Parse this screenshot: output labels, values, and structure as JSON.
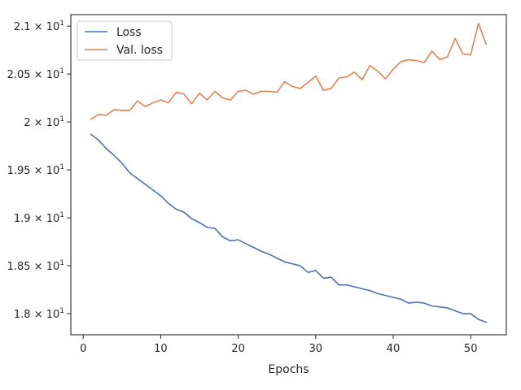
{
  "chart_data": {
    "type": "line",
    "title": "",
    "xlabel": "Epochs",
    "ylabel": "",
    "xlim": [
      -1.6,
      54.6
    ],
    "ylim": [
      17.78,
      21.12
    ],
    "grid": false,
    "legend_position": "top-left",
    "x_ticks": [
      {
        "value": 0,
        "label": "0"
      },
      {
        "value": 10,
        "label": "10"
      },
      {
        "value": 20,
        "label": "20"
      },
      {
        "value": 30,
        "label": "30"
      },
      {
        "value": 40,
        "label": "40"
      },
      {
        "value": 50,
        "label": "50"
      }
    ],
    "y_ticks": [
      {
        "value": 18.0,
        "mantissa": "1.8",
        "exp": "1"
      },
      {
        "value": 18.5,
        "mantissa": "1.85",
        "exp": "1"
      },
      {
        "value": 19.0,
        "mantissa": "1.9",
        "exp": "1"
      },
      {
        "value": 19.5,
        "mantissa": "1.95",
        "exp": "1"
      },
      {
        "value": 20.0,
        "mantissa": "2",
        "exp": "1"
      },
      {
        "value": 20.5,
        "mantissa": "2.05",
        "exp": "1"
      },
      {
        "value": 21.0,
        "mantissa": "2.1",
        "exp": "1"
      }
    ],
    "x": [
      1,
      2,
      3,
      4,
      5,
      6,
      7,
      8,
      9,
      10,
      11,
      12,
      13,
      14,
      15,
      16,
      17,
      18,
      19,
      20,
      21,
      22,
      23,
      24,
      25,
      26,
      27,
      28,
      29,
      30,
      31,
      32,
      33,
      34,
      35,
      36,
      37,
      38,
      39,
      40,
      41,
      42,
      43,
      44,
      45,
      46,
      47,
      48,
      49,
      50,
      51,
      52
    ],
    "series": [
      {
        "name": "Loss",
        "color": "#4c72b0",
        "values": [
          19.87,
          19.81,
          19.72,
          19.65,
          19.57,
          19.47,
          19.41,
          19.35,
          19.29,
          19.23,
          19.15,
          19.09,
          19.06,
          18.99,
          18.95,
          18.9,
          18.89,
          18.8,
          18.76,
          18.77,
          18.73,
          18.69,
          18.65,
          18.62,
          18.58,
          18.54,
          18.52,
          18.5,
          18.43,
          18.45,
          18.37,
          18.38,
          18.3,
          18.3,
          18.28,
          18.26,
          18.24,
          18.21,
          18.19,
          18.17,
          18.15,
          18.11,
          18.12,
          18.11,
          18.08,
          18.07,
          18.06,
          18.03,
          18.0,
          18.0,
          17.94,
          17.91
        ]
      },
      {
        "name": "Val. loss",
        "color": "#dd8452",
        "values": [
          20.03,
          20.08,
          20.07,
          20.13,
          20.12,
          20.12,
          20.22,
          20.16,
          20.2,
          20.23,
          20.2,
          20.31,
          20.29,
          20.19,
          20.3,
          20.23,
          20.32,
          20.25,
          20.23,
          20.32,
          20.33,
          20.29,
          20.32,
          20.32,
          20.31,
          20.42,
          20.37,
          20.35,
          20.41,
          20.48,
          20.33,
          20.35,
          20.46,
          20.47,
          20.52,
          20.44,
          20.59,
          20.53,
          20.45,
          20.55,
          20.63,
          20.65,
          20.64,
          20.62,
          20.74,
          20.65,
          20.68,
          20.87,
          20.71,
          20.7,
          21.03,
          20.81
        ]
      }
    ]
  }
}
